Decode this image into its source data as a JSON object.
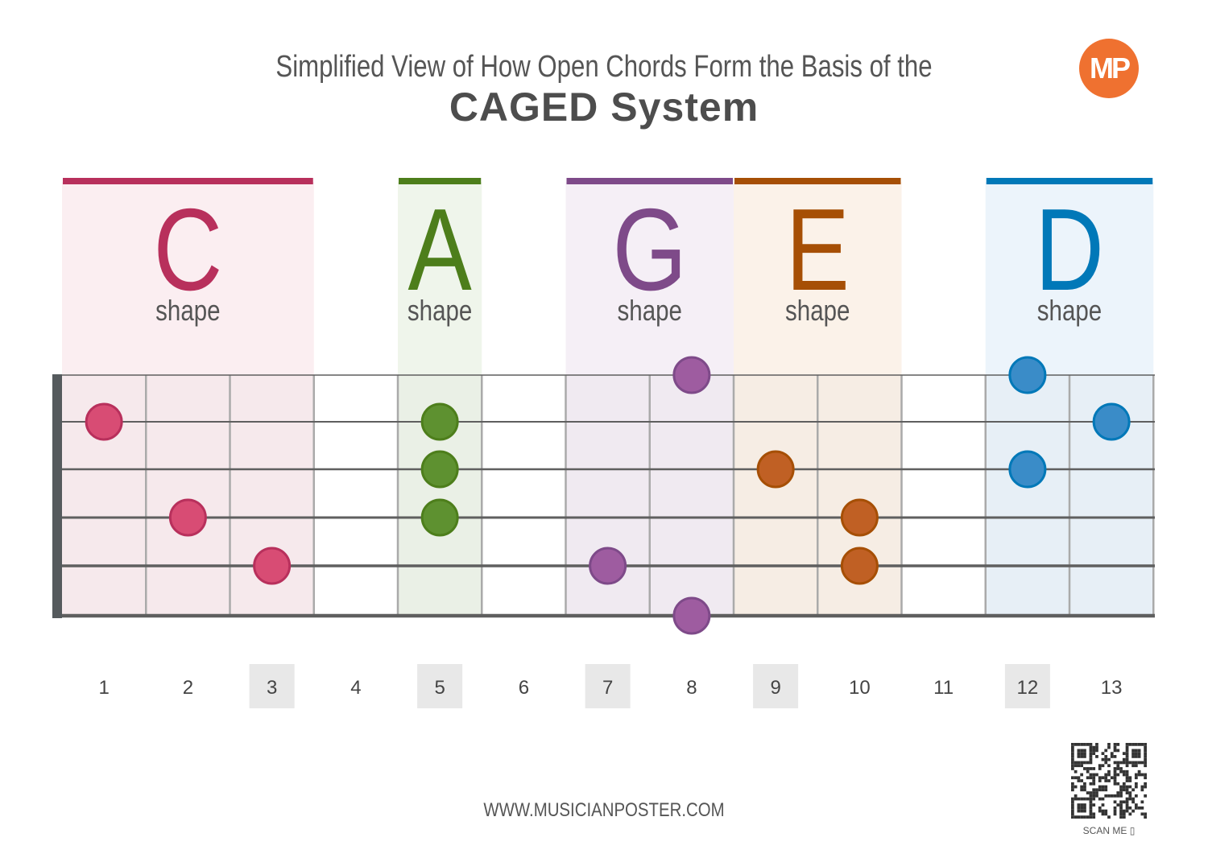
{
  "header": {
    "subtitle": "Simplified View of How Open Chords Form the Basis of the",
    "title": "CAGED System",
    "logo_text": "MP"
  },
  "fret_numbers": [
    "1",
    "2",
    "3",
    "4",
    "5",
    "6",
    "7",
    "8",
    "9",
    "10",
    "11",
    "12",
    "13"
  ],
  "highlighted_frets": [
    3,
    5,
    7,
    9,
    12
  ],
  "highlight_color": "#e8e8e8",
  "shapes": [
    {
      "letter": "C",
      "label": "shape",
      "frets": [
        1,
        3
      ],
      "color": "#b8305c",
      "bg": "#fbeef1",
      "dot": "#d84c74",
      "notes": [
        {
          "fret": 1,
          "string": 2
        },
        {
          "fret": 2,
          "string": 4
        },
        {
          "fret": 3,
          "string": 5
        }
      ]
    },
    {
      "letter": "A",
      "label": "shape",
      "frets": [
        5,
        5
      ],
      "color": "#4d7e1b",
      "bg": "#eff5eb",
      "dot": "#5e9130",
      "notes": [
        {
          "fret": 5,
          "string": 2
        },
        {
          "fret": 5,
          "string": 3
        },
        {
          "fret": 5,
          "string": 4
        }
      ]
    },
    {
      "letter": "G",
      "label": "shape",
      "frets": [
        7,
        8
      ],
      "color": "#7e4a89",
      "bg": "#f5eff6",
      "dot": "#9e5ca0",
      "notes": [
        {
          "fret": 8,
          "string": 1
        },
        {
          "fret": 7,
          "string": 5
        },
        {
          "fret": 8,
          "string": 6
        }
      ]
    },
    {
      "letter": "E",
      "label": "shape",
      "frets": [
        9,
        10
      ],
      "color": "#a64f05",
      "bg": "#fbf2e9",
      "dot": "#c06024",
      "notes": [
        {
          "fret": 9,
          "string": 3
        },
        {
          "fret": 10,
          "string": 4
        },
        {
          "fret": 10,
          "string": 5
        }
      ]
    },
    {
      "letter": "D",
      "label": "shape",
      "frets": [
        12,
        13
      ],
      "color": "#0078b8",
      "bg": "#ecf4fb",
      "dot": "#3a8cc8",
      "notes": [
        {
          "fret": 12,
          "string": 1
        },
        {
          "fret": 13,
          "string": 2
        },
        {
          "fret": 12,
          "string": 3
        }
      ]
    }
  ],
  "footer": {
    "url": "WWW.MUSICIANPOSTER.COM",
    "scan_label": "SCAN ME"
  }
}
